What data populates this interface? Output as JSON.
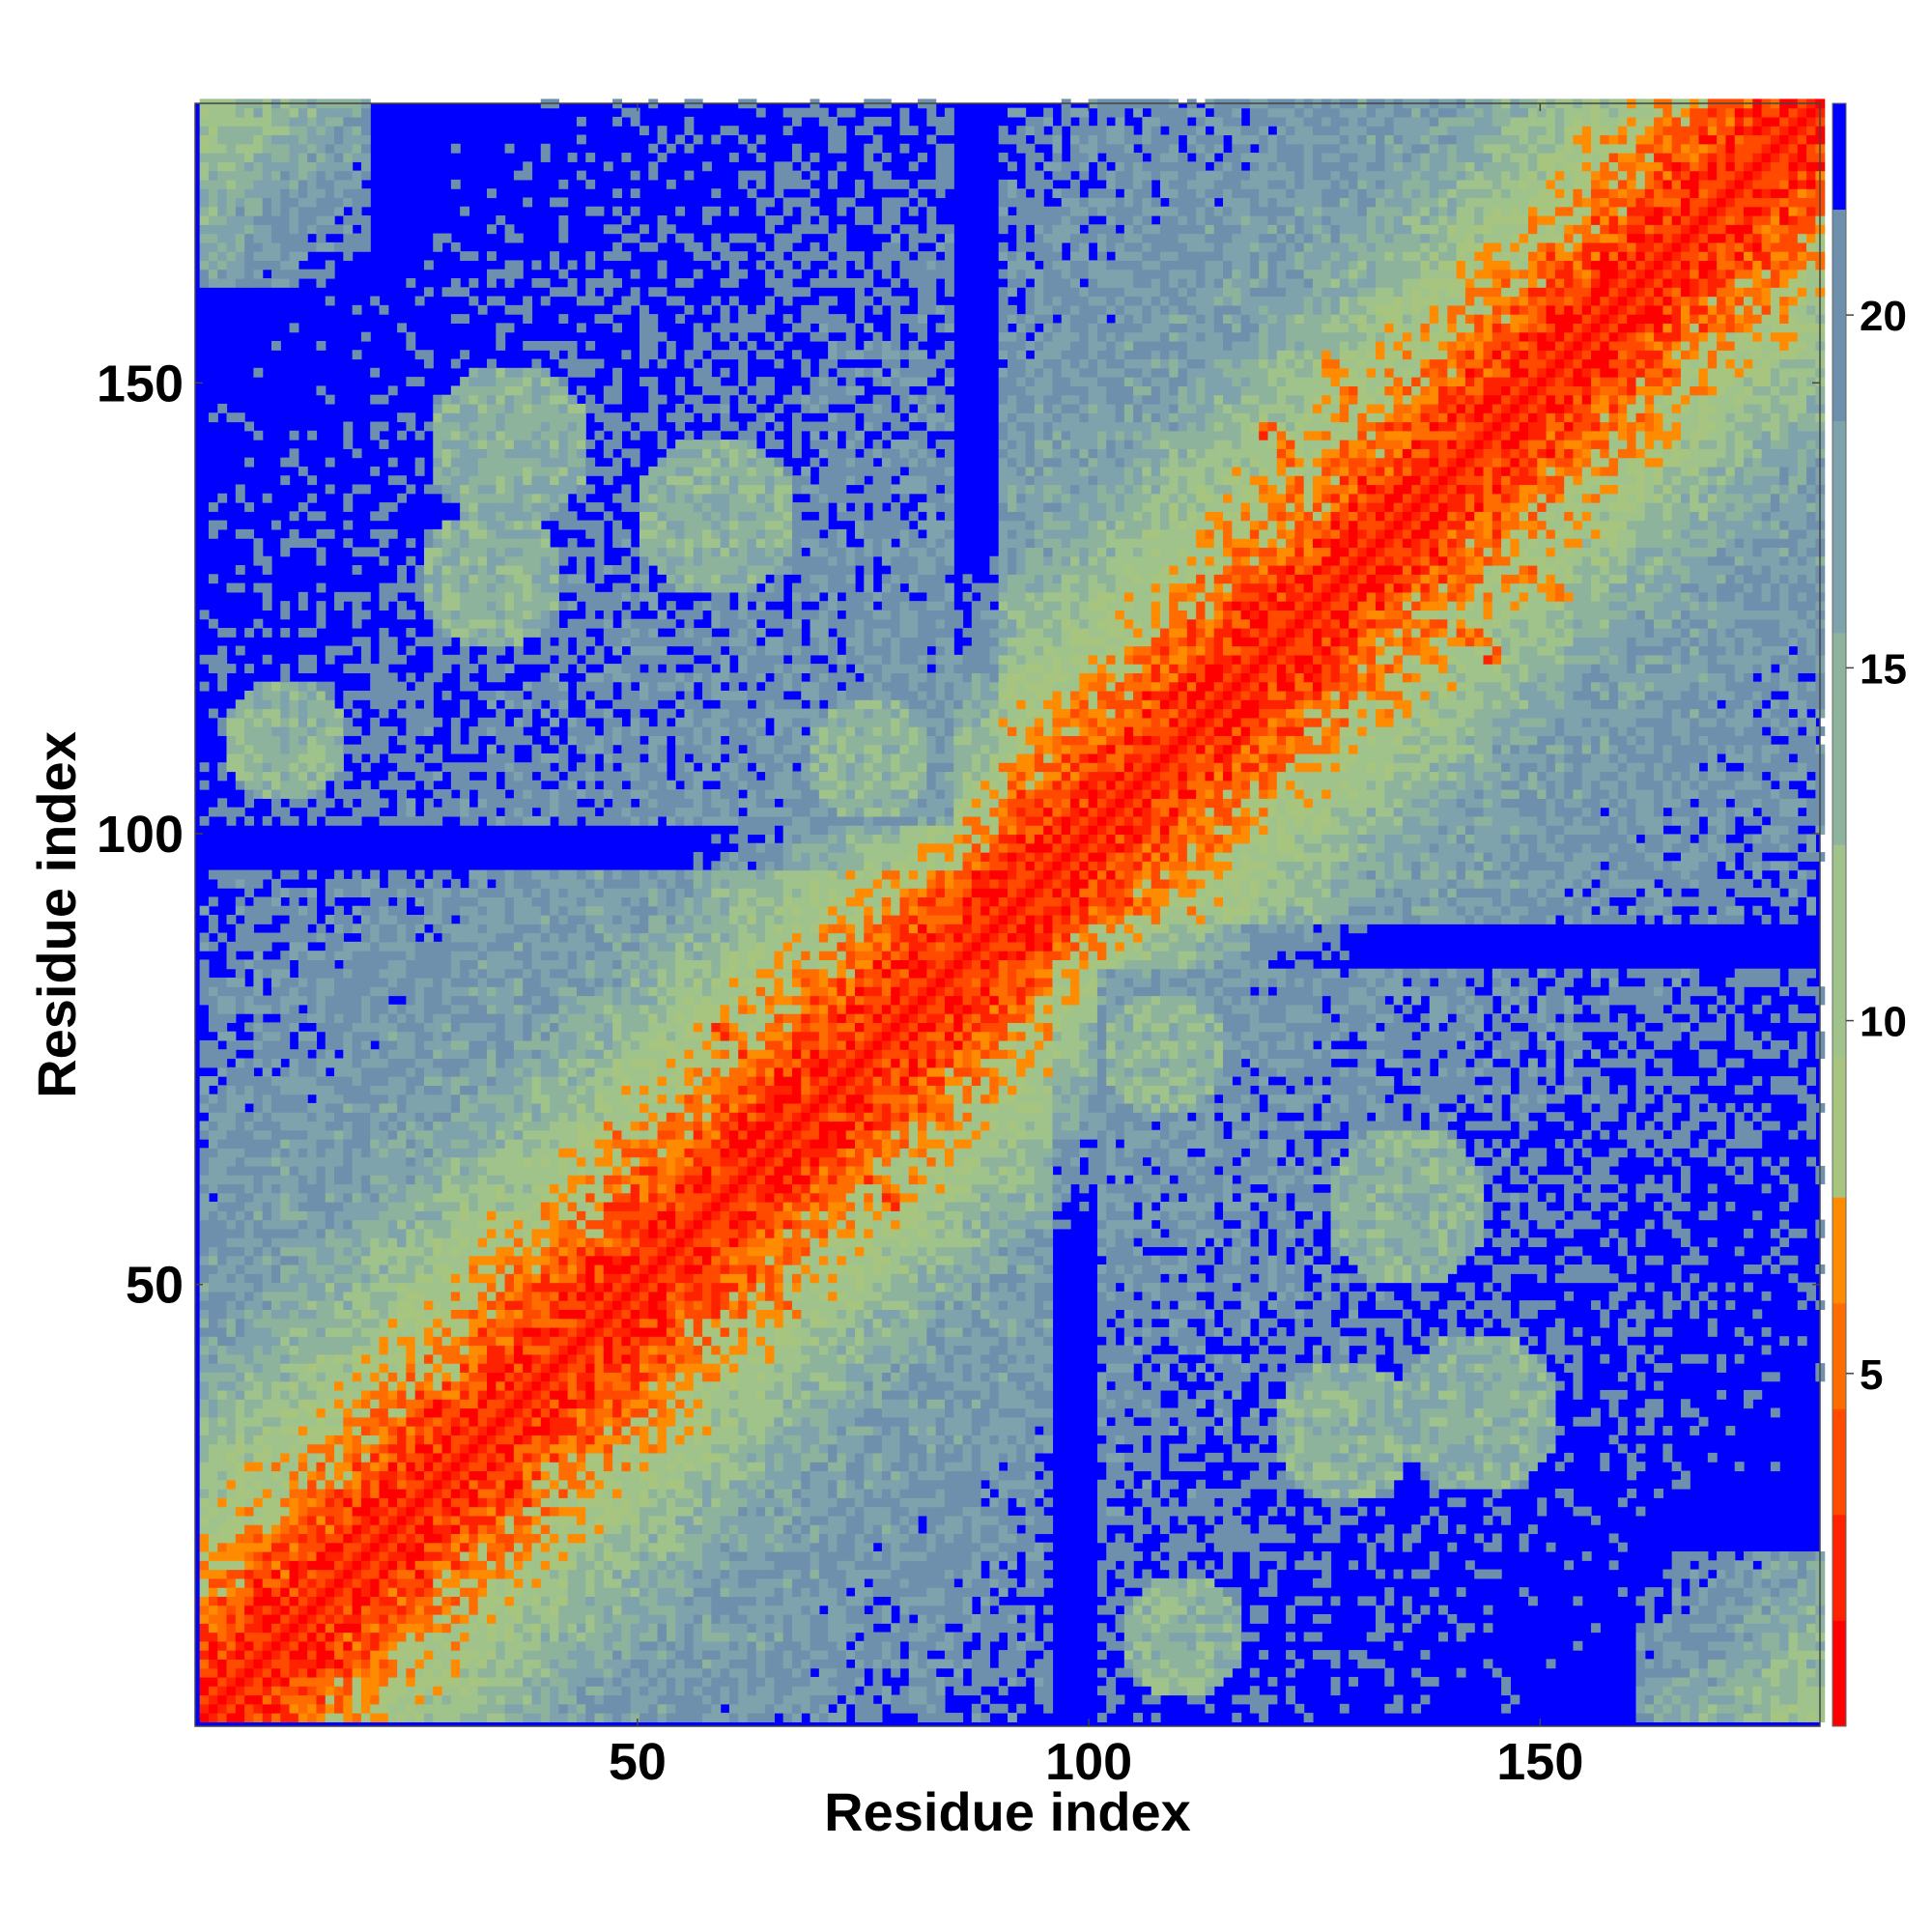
{
  "chart_data": {
    "type": "heatmap",
    "title": "",
    "xlabel": "Residue index",
    "ylabel": "Residue index",
    "n_residues": 181,
    "xlim": [
      1,
      181
    ],
    "ylim": [
      1,
      181
    ],
    "x_ticks": [
      50,
      100,
      150
    ],
    "y_ticks": [
      50,
      100,
      150
    ],
    "colorbar": {
      "ticks": [
        5,
        10,
        15,
        20
      ],
      "range": [
        0,
        23
      ],
      "levels": [
        {
          "min": 0,
          "max": 1.5,
          "color": "#ff0000"
        },
        {
          "min": 1.5,
          "max": 3.0,
          "color": "#ff2200"
        },
        {
          "min": 3.0,
          "max": 4.5,
          "color": "#ff4a00"
        },
        {
          "min": 4.5,
          "max": 6.0,
          "color": "#ff6d00"
        },
        {
          "min": 6.0,
          "max": 7.5,
          "color": "#ff8c00"
        },
        {
          "min": 7.5,
          "max": 9.5,
          "color": "#a7c57f"
        },
        {
          "min": 9.5,
          "max": 12.5,
          "color": "#9fc38b"
        },
        {
          "min": 12.5,
          "max": 15.5,
          "color": "#8eb39d"
        },
        {
          "min": 15.5,
          "max": 18.5,
          "color": "#7fa3ac"
        },
        {
          "min": 18.5,
          "max": 21.5,
          "color": "#6f90ad"
        },
        {
          "min": 21.5,
          "max": 23,
          "color": "#0000ff"
        }
      ]
    },
    "colors": {
      "near": "#ff0000",
      "close": "#ff8c00",
      "mid": "#a7c57f",
      "far": "#7fa3ac",
      "beyond_cutoff": "#0000ff"
    },
    "contact_features": [
      {
        "type": "helix_band",
        "residue_start": 1,
        "residue_end": 181,
        "description": "diagonal"
      },
      {
        "type": "domain_block",
        "residue_start": 1,
        "residue_end": 92
      },
      {
        "type": "domain_block",
        "residue_start": 92,
        "residue_end": 181
      },
      {
        "type": "antiparallel_contact",
        "i": 64,
        "j": 72,
        "span": 8
      },
      {
        "type": "antiparallel_contact",
        "i": 60,
        "j": 52,
        "span": 7
      },
      {
        "type": "antiparallel_contact",
        "i": 127,
        "j": 137,
        "span": 9
      },
      {
        "type": "antiparallel_contact",
        "i": 145,
        "j": 133,
        "span": 8
      },
      {
        "type": "antiparallel_contact",
        "i": 163,
        "j": 171,
        "span": 8
      }
    ]
  }
}
